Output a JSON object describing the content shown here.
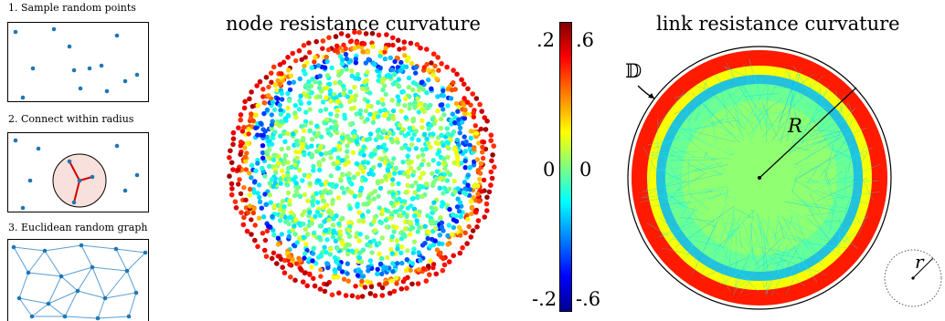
{
  "step_panels": [
    {
      "label": "1. Sample random points"
    },
    {
      "label": "2. Connect within radius"
    },
    {
      "label": "3. Euclidean random graph"
    }
  ],
  "node_plot": {
    "title": "node resistance curvature"
  },
  "link_plot": {
    "title": "link resistance curvature",
    "disk_symbol": "𝔻",
    "radius_label": "R",
    "small_radius_label": "r"
  },
  "colorbar": {
    "left_ticks": [
      ".2",
      "0",
      "-.2"
    ],
    "right_ticks": [
      ".6",
      "0",
      "-.6"
    ],
    "colormap": [
      "#00008f",
      "#0000ff",
      "#0080ff",
      "#00ffff",
      "#80ff80",
      "#ffff00",
      "#ff8000",
      "#ff0000",
      "#800000"
    ]
  },
  "colors": {
    "point": "#1f77b4",
    "edge": "#5a9fd4",
    "highlight_fill": "#f8e0dc",
    "highlight_edge": "#d40000"
  }
}
